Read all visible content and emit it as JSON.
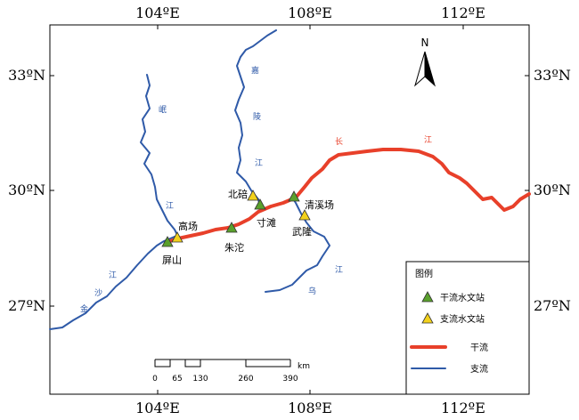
{
  "axes": {
    "top": [
      "104ºE",
      "108ºE",
      "112ºE"
    ],
    "bottom": [
      "104ºE",
      "108ºE",
      "112ºE"
    ],
    "left": [
      "33ºN",
      "30ºN",
      "27ºN"
    ],
    "right": [
      "33ºN",
      "30ºN",
      "27ºN"
    ]
  },
  "north": "N",
  "stations": {
    "gaochang": "高场",
    "pingshan": "屏山",
    "zhutuo": "朱沱",
    "beibei": "北碚",
    "cuntan": "寸滩",
    "qingxichang": "清溪场",
    "wulong": "武隆"
  },
  "rivers": {
    "changjiang": [
      "长",
      "江"
    ],
    "jialing": [
      "嘉",
      "陵",
      "江"
    ],
    "min": [
      "岷",
      "江"
    ],
    "jinsha": [
      "金",
      "沙",
      "江"
    ],
    "wu": [
      "乌",
      "江"
    ]
  },
  "legend": {
    "title": "图例",
    "main_station": "干流水文站",
    "trib_station": "支流水文站",
    "main_river": "干流",
    "trib_river": "支流"
  },
  "scale": {
    "unit": "km",
    "ticks": [
      "0",
      "65",
      "130",
      "260",
      "390"
    ]
  },
  "colors": {
    "main_river": "#e8402a",
    "trib_river": "#2f5aa8",
    "main_station": "#5aa02c",
    "trib_station": "#f2d11c"
  }
}
